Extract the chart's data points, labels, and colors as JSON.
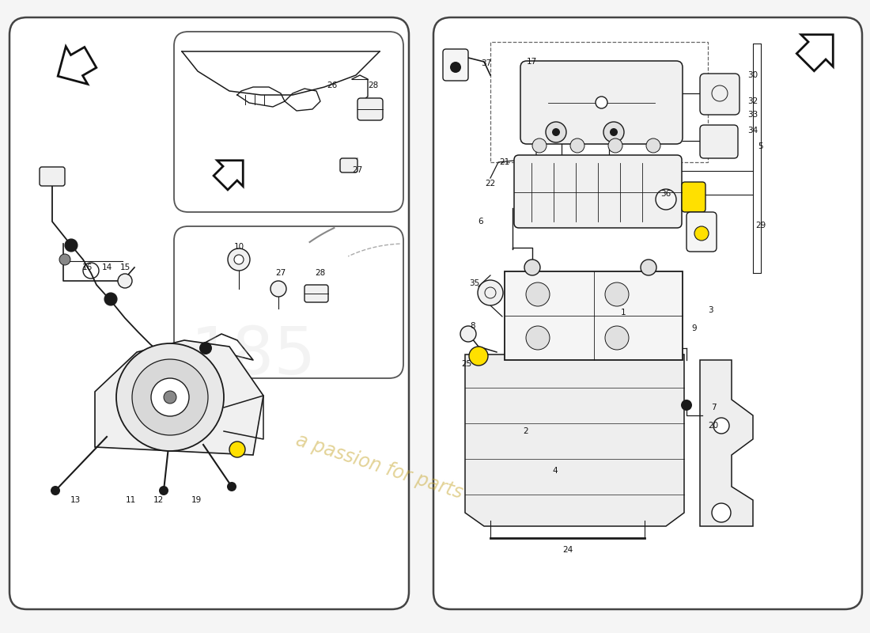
{
  "bg_color": "#ffffff",
  "page_bg": "#f5f5f5",
  "line_color": "#1a1a1a",
  "panel_fill": "#ffffff",
  "watermark_text": "a passion for parts",
  "watermark_color": "#d4b840",
  "lc": "#1a1a1a",
  "lw": 1.0,
  "label_fontsize": 7.5,
  "labels_left": [
    [
      "16",
      1.1,
      4.62
    ],
    [
      "14",
      1.35,
      4.62
    ],
    [
      "15",
      1.58,
      4.62
    ],
    [
      "13",
      0.95,
      1.68
    ],
    [
      "11",
      1.65,
      1.68
    ],
    [
      "12",
      2.0,
      1.68
    ],
    [
      "19",
      2.48,
      1.68
    ],
    [
      "26",
      4.2,
      6.92
    ],
    [
      "28",
      4.72,
      6.92
    ],
    [
      "27",
      4.52,
      5.85
    ],
    [
      "10",
      3.02,
      4.88
    ],
    [
      "27",
      3.55,
      4.55
    ],
    [
      "28",
      4.05,
      4.55
    ]
  ],
  "labels_right": [
    [
      "37",
      6.15,
      7.2
    ],
    [
      "17",
      6.72,
      7.22
    ],
    [
      "30",
      9.52,
      7.05
    ],
    [
      "32",
      9.52,
      6.72
    ],
    [
      "33",
      9.52,
      6.55
    ],
    [
      "34",
      9.52,
      6.35
    ],
    [
      "5",
      9.62,
      6.15
    ],
    [
      "29",
      9.62,
      5.15
    ],
    [
      "21",
      6.38,
      5.95
    ],
    [
      "22",
      6.2,
      5.68
    ],
    [
      "6",
      6.08,
      5.2
    ],
    [
      "36",
      8.42,
      5.55
    ],
    [
      "35",
      6.0,
      4.42
    ],
    [
      "8",
      5.98,
      3.88
    ],
    [
      "25",
      5.9,
      3.4
    ],
    [
      "1",
      7.88,
      4.05
    ],
    [
      "3",
      8.98,
      4.08
    ],
    [
      "9",
      8.78,
      3.85
    ],
    [
      "2",
      6.65,
      2.55
    ],
    [
      "4",
      7.02,
      2.05
    ],
    [
      "7",
      9.02,
      2.85
    ],
    [
      "20",
      9.02,
      2.62
    ],
    [
      "24",
      7.18,
      1.05
    ]
  ]
}
